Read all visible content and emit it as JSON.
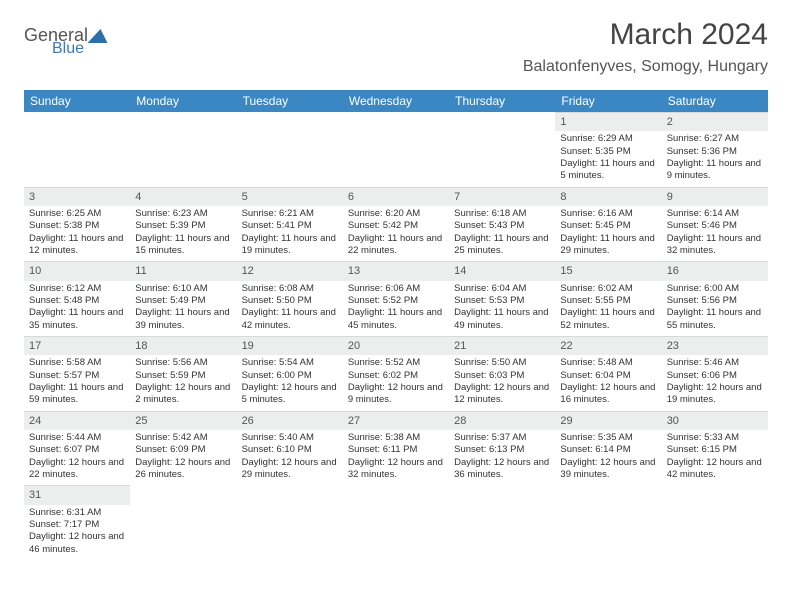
{
  "brand": {
    "name": "General",
    "sub": "Blue"
  },
  "title": "March 2024",
  "location": "Balatonfenyves, Somogy, Hungary",
  "weekday_headers": [
    "Sunday",
    "Monday",
    "Tuesday",
    "Wednesday",
    "Thursday",
    "Friday",
    "Saturday"
  ],
  "colors": {
    "header_bg": "#3a87c4",
    "header_fg": "#ffffff",
    "daynum_bg": "#eceded",
    "body_fg": "#333333",
    "title_fg": "#444444",
    "brand_sub": "#3a7ab8"
  },
  "weeks": [
    [
      null,
      null,
      null,
      null,
      null,
      {
        "n": "1",
        "sr": "Sunrise: 6:29 AM",
        "ss": "Sunset: 5:35 PM",
        "dl": "Daylight: 11 hours and 5 minutes."
      },
      {
        "n": "2",
        "sr": "Sunrise: 6:27 AM",
        "ss": "Sunset: 5:36 PM",
        "dl": "Daylight: 11 hours and 9 minutes."
      }
    ],
    [
      {
        "n": "3",
        "sr": "Sunrise: 6:25 AM",
        "ss": "Sunset: 5:38 PM",
        "dl": "Daylight: 11 hours and 12 minutes."
      },
      {
        "n": "4",
        "sr": "Sunrise: 6:23 AM",
        "ss": "Sunset: 5:39 PM",
        "dl": "Daylight: 11 hours and 15 minutes."
      },
      {
        "n": "5",
        "sr": "Sunrise: 6:21 AM",
        "ss": "Sunset: 5:41 PM",
        "dl": "Daylight: 11 hours and 19 minutes."
      },
      {
        "n": "6",
        "sr": "Sunrise: 6:20 AM",
        "ss": "Sunset: 5:42 PM",
        "dl": "Daylight: 11 hours and 22 minutes."
      },
      {
        "n": "7",
        "sr": "Sunrise: 6:18 AM",
        "ss": "Sunset: 5:43 PM",
        "dl": "Daylight: 11 hours and 25 minutes."
      },
      {
        "n": "8",
        "sr": "Sunrise: 6:16 AM",
        "ss": "Sunset: 5:45 PM",
        "dl": "Daylight: 11 hours and 29 minutes."
      },
      {
        "n": "9",
        "sr": "Sunrise: 6:14 AM",
        "ss": "Sunset: 5:46 PM",
        "dl": "Daylight: 11 hours and 32 minutes."
      }
    ],
    [
      {
        "n": "10",
        "sr": "Sunrise: 6:12 AM",
        "ss": "Sunset: 5:48 PM",
        "dl": "Daylight: 11 hours and 35 minutes."
      },
      {
        "n": "11",
        "sr": "Sunrise: 6:10 AM",
        "ss": "Sunset: 5:49 PM",
        "dl": "Daylight: 11 hours and 39 minutes."
      },
      {
        "n": "12",
        "sr": "Sunrise: 6:08 AM",
        "ss": "Sunset: 5:50 PM",
        "dl": "Daylight: 11 hours and 42 minutes."
      },
      {
        "n": "13",
        "sr": "Sunrise: 6:06 AM",
        "ss": "Sunset: 5:52 PM",
        "dl": "Daylight: 11 hours and 45 minutes."
      },
      {
        "n": "14",
        "sr": "Sunrise: 6:04 AM",
        "ss": "Sunset: 5:53 PM",
        "dl": "Daylight: 11 hours and 49 minutes."
      },
      {
        "n": "15",
        "sr": "Sunrise: 6:02 AM",
        "ss": "Sunset: 5:55 PM",
        "dl": "Daylight: 11 hours and 52 minutes."
      },
      {
        "n": "16",
        "sr": "Sunrise: 6:00 AM",
        "ss": "Sunset: 5:56 PM",
        "dl": "Daylight: 11 hours and 55 minutes."
      }
    ],
    [
      {
        "n": "17",
        "sr": "Sunrise: 5:58 AM",
        "ss": "Sunset: 5:57 PM",
        "dl": "Daylight: 11 hours and 59 minutes."
      },
      {
        "n": "18",
        "sr": "Sunrise: 5:56 AM",
        "ss": "Sunset: 5:59 PM",
        "dl": "Daylight: 12 hours and 2 minutes."
      },
      {
        "n": "19",
        "sr": "Sunrise: 5:54 AM",
        "ss": "Sunset: 6:00 PM",
        "dl": "Daylight: 12 hours and 5 minutes."
      },
      {
        "n": "20",
        "sr": "Sunrise: 5:52 AM",
        "ss": "Sunset: 6:02 PM",
        "dl": "Daylight: 12 hours and 9 minutes."
      },
      {
        "n": "21",
        "sr": "Sunrise: 5:50 AM",
        "ss": "Sunset: 6:03 PM",
        "dl": "Daylight: 12 hours and 12 minutes."
      },
      {
        "n": "22",
        "sr": "Sunrise: 5:48 AM",
        "ss": "Sunset: 6:04 PM",
        "dl": "Daylight: 12 hours and 16 minutes."
      },
      {
        "n": "23",
        "sr": "Sunrise: 5:46 AM",
        "ss": "Sunset: 6:06 PM",
        "dl": "Daylight: 12 hours and 19 minutes."
      }
    ],
    [
      {
        "n": "24",
        "sr": "Sunrise: 5:44 AM",
        "ss": "Sunset: 6:07 PM",
        "dl": "Daylight: 12 hours and 22 minutes."
      },
      {
        "n": "25",
        "sr": "Sunrise: 5:42 AM",
        "ss": "Sunset: 6:09 PM",
        "dl": "Daylight: 12 hours and 26 minutes."
      },
      {
        "n": "26",
        "sr": "Sunrise: 5:40 AM",
        "ss": "Sunset: 6:10 PM",
        "dl": "Daylight: 12 hours and 29 minutes."
      },
      {
        "n": "27",
        "sr": "Sunrise: 5:38 AM",
        "ss": "Sunset: 6:11 PM",
        "dl": "Daylight: 12 hours and 32 minutes."
      },
      {
        "n": "28",
        "sr": "Sunrise: 5:37 AM",
        "ss": "Sunset: 6:13 PM",
        "dl": "Daylight: 12 hours and 36 minutes."
      },
      {
        "n": "29",
        "sr": "Sunrise: 5:35 AM",
        "ss": "Sunset: 6:14 PM",
        "dl": "Daylight: 12 hours and 39 minutes."
      },
      {
        "n": "30",
        "sr": "Sunrise: 5:33 AM",
        "ss": "Sunset: 6:15 PM",
        "dl": "Daylight: 12 hours and 42 minutes."
      }
    ],
    [
      {
        "n": "31",
        "sr": "Sunrise: 6:31 AM",
        "ss": "Sunset: 7:17 PM",
        "dl": "Daylight: 12 hours and 46 minutes."
      },
      null,
      null,
      null,
      null,
      null,
      null
    ]
  ]
}
